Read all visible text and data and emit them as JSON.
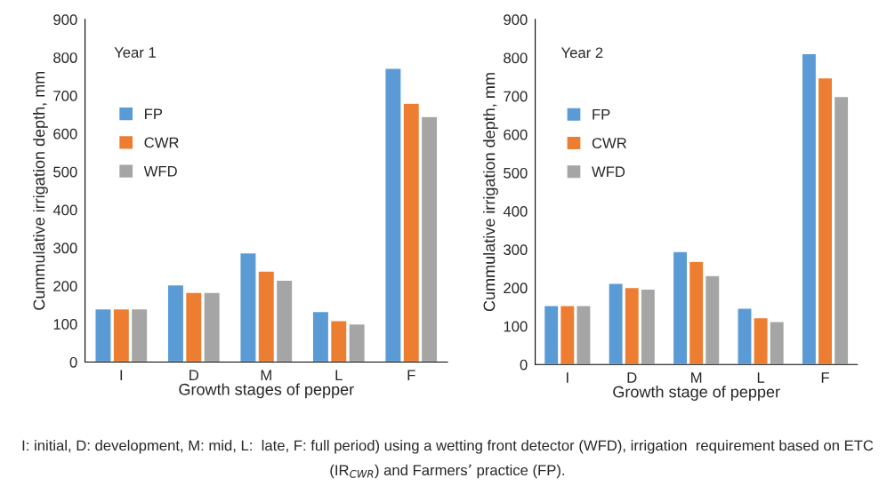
{
  "chart_data": [
    {
      "type": "bar",
      "categories": [
        "I",
        "D",
        "M",
        "L",
        "F"
      ],
      "xlabel": "Growth stages of pepper",
      "ylabel": "Cummulative irrigation depth, mm",
      "ylim": [
        0,
        900
      ],
      "yticks": [
        0,
        100,
        200,
        300,
        400,
        500,
        600,
        700,
        800,
        900
      ],
      "grid": false,
      "legend": "top left",
      "series": [
        {
          "name": "FP",
          "color": "#5b9bd5",
          "values": [
            140,
            203,
            287,
            133,
            772
          ]
        },
        {
          "name": "CWR",
          "color": "#ed7d31",
          "values": [
            140,
            183,
            239,
            109,
            680
          ]
        },
        {
          "name": "WFD",
          "color": "#a5a5a5",
          "values": [
            140,
            183,
            215,
            100,
            645
          ]
        }
      ],
      "annotations": [
        "Year 1",
        "I: initial, D: development, M: mid, L:  late, F: full period) using a wetting front detector (WFD), irrigation  requirement based on ETC (IR$_{CWR}$) and Farmers’ practice (FP)."
      ]
    },
    {
      "type": "bar",
      "categories": [
        "I",
        "D",
        "M",
        "L",
        "F"
      ],
      "xlabel": "Growth stage of pepper",
      "ylabel": "Cummulative irrigation depth, mm",
      "ylim": [
        0,
        900
      ],
      "yticks": [
        0,
        100,
        200,
        300,
        400,
        500,
        600,
        700,
        800,
        900
      ],
      "grid": false,
      "legend": "top left",
      "series": [
        {
          "name": "FP",
          "color": "#5b9bd5",
          "values": [
            154,
            212,
            295,
            147,
            811
          ]
        },
        {
          "name": "CWR",
          "color": "#ed7d31",
          "values": [
            154,
            201,
            269,
            122,
            748
          ]
        },
        {
          "name": "WFD",
          "color": "#a5a5a5",
          "values": [
            154,
            197,
            232,
            112,
            699
          ]
        }
      ],
      "annotations": [
        "Year 2"
      ]
    }
  ]
}
